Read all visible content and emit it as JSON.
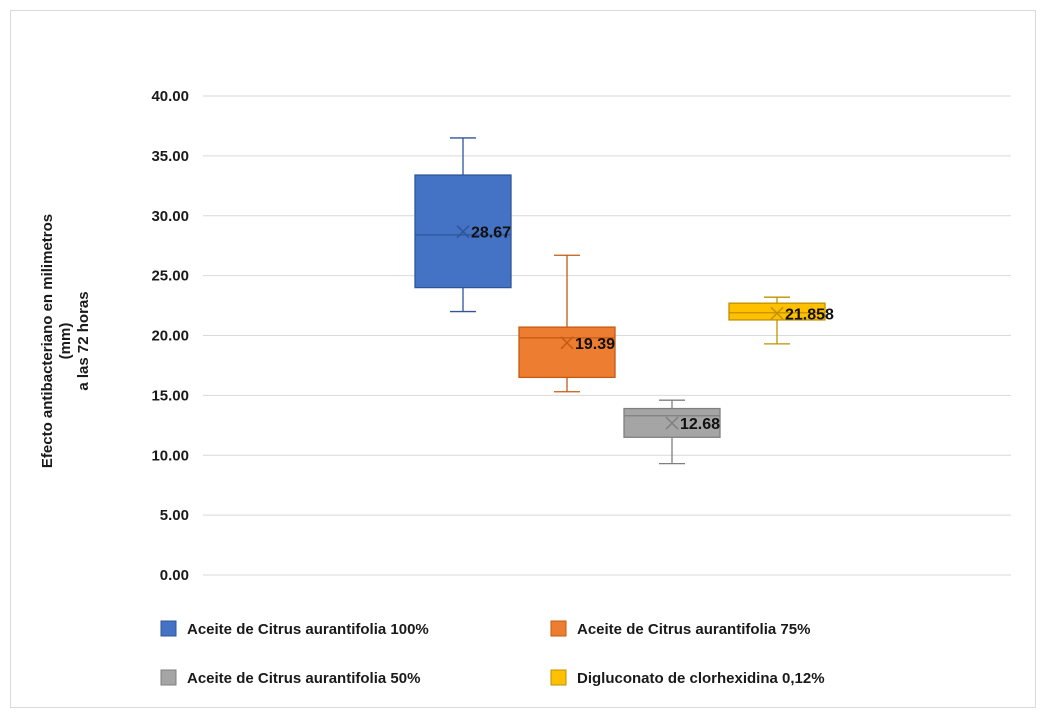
{
  "chart_data": {
    "type": "box",
    "title": "",
    "xlabel": "",
    "ylabel": [
      "Efecto antibacteriano en milimetros",
      "(mm)",
      "a las 72 horas"
    ],
    "ylim": [
      0,
      40
    ],
    "yticks": [
      "0.00",
      "5.00",
      "10.00",
      "15.00",
      "20.00",
      "25.00",
      "30.00",
      "35.00",
      "40.00"
    ],
    "grid": true,
    "legend_position": "bottom",
    "series": [
      {
        "name": "Aceite de Citrus aurantifolia 100%",
        "color": "#4472c4",
        "edge": "#2f5597",
        "min": 22.0,
        "q1": 24.0,
        "median": 28.4,
        "q3": 33.4,
        "max": 36.5,
        "mean": 28.67,
        "mean_label": "28.67"
      },
      {
        "name": "Aceite de Citrus aurantifolia 75%",
        "color": "#ed7d31",
        "edge": "#c55a11",
        "min": 15.3,
        "q1": 16.5,
        "median": 19.8,
        "q3": 20.7,
        "max": 26.7,
        "mean": 19.39,
        "mean_label": "19.39"
      },
      {
        "name": "Aceite de Citrus aurantifolia 50%",
        "color": "#a5a5a5",
        "edge": "#7f7f7f",
        "min": 9.3,
        "q1": 11.5,
        "median": 13.3,
        "q3": 13.9,
        "max": 14.6,
        "mean": 12.68,
        "mean_label": "12.68"
      },
      {
        "name": "Digluconato de clorhexidina 0,12%",
        "color": "#ffc000",
        "edge": "#bf9000",
        "min": 19.3,
        "q1": 21.3,
        "median": 21.9,
        "q3": 22.7,
        "max": 23.2,
        "mean": 21.858,
        "mean_label": "21.858"
      }
    ]
  }
}
